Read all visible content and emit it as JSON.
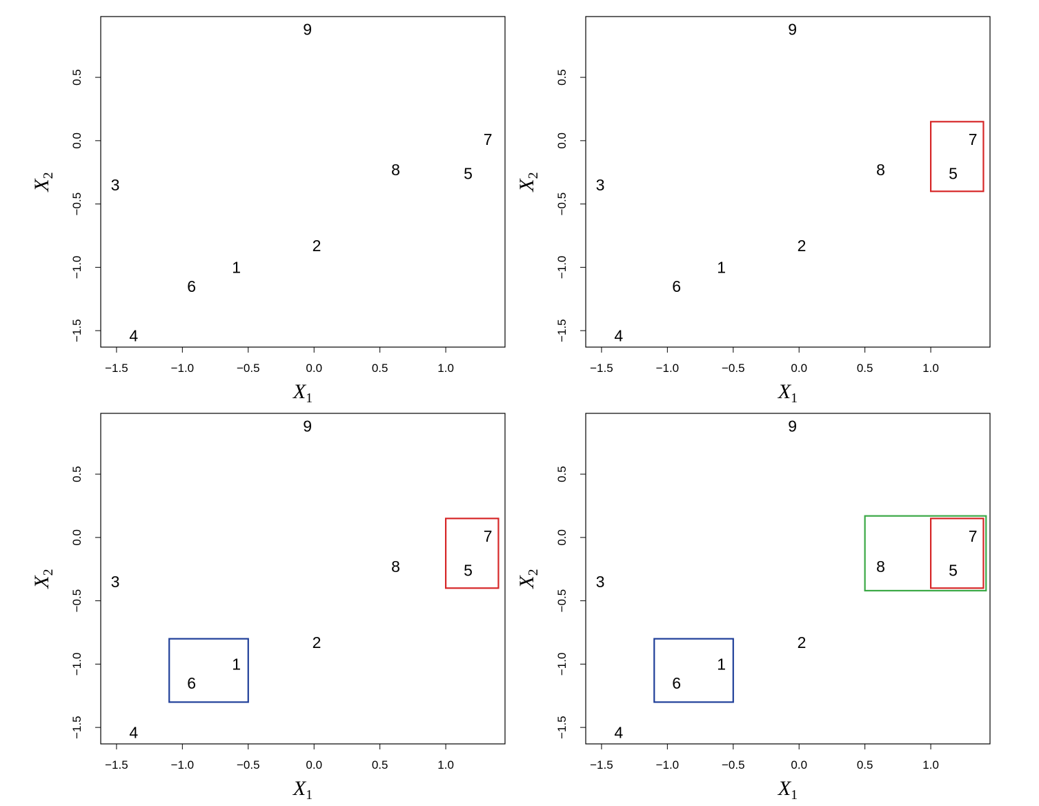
{
  "chart_data": [
    {
      "type": "scatter",
      "xlabel": "X",
      "xlabel_sub": "1",
      "ylabel": "X",
      "ylabel_sub": "2",
      "xlim": [
        -1.62,
        1.45
      ],
      "ylim": [
        -1.63,
        0.98
      ],
      "xticks": [
        {
          "v": -1.5,
          "t": "−1.5"
        },
        {
          "v": -1.0,
          "t": "−1.0"
        },
        {
          "v": -0.5,
          "t": "−0.5"
        },
        {
          "v": 0.0,
          "t": "0.0"
        },
        {
          "v": 0.5,
          "t": "0.5"
        },
        {
          "v": 1.0,
          "t": "1.0"
        }
      ],
      "yticks": [
        {
          "v": -1.5,
          "t": "−1.5"
        },
        {
          "v": -1.0,
          "t": "−1.0"
        },
        {
          "v": -0.5,
          "t": "−0.5"
        },
        {
          "v": 0.0,
          "t": "0.0"
        },
        {
          "v": 0.5,
          "t": "0.5"
        }
      ],
      "points": [
        {
          "label": "1",
          "x": -0.59,
          "y": -1.0
        },
        {
          "label": "2",
          "x": 0.02,
          "y": -0.83
        },
        {
          "label": "3",
          "x": -1.51,
          "y": -0.35
        },
        {
          "label": "4",
          "x": -1.37,
          "y": -1.54
        },
        {
          "label": "5",
          "x": 1.17,
          "y": -0.26
        },
        {
          "label": "6",
          "x": -0.93,
          "y": -1.15
        },
        {
          "label": "7",
          "x": 1.32,
          "y": 0.01
        },
        {
          "label": "8",
          "x": 0.62,
          "y": -0.23
        },
        {
          "label": "9",
          "x": -0.05,
          "y": 0.88
        }
      ],
      "rectangles": []
    },
    {
      "type": "scatter",
      "xlabel": "X",
      "xlabel_sub": "1",
      "ylabel": "X",
      "ylabel_sub": "2",
      "xlim": [
        -1.62,
        1.45
      ],
      "ylim": [
        -1.63,
        0.98
      ],
      "xticks": [
        {
          "v": -1.5,
          "t": "−1.5"
        },
        {
          "v": -1.0,
          "t": "−1.0"
        },
        {
          "v": -0.5,
          "t": "−0.5"
        },
        {
          "v": 0.0,
          "t": "0.0"
        },
        {
          "v": 0.5,
          "t": "0.5"
        },
        {
          "v": 1.0,
          "t": "1.0"
        }
      ],
      "yticks": [
        {
          "v": -1.5,
          "t": "−1.5"
        },
        {
          "v": -1.0,
          "t": "−1.0"
        },
        {
          "v": -0.5,
          "t": "−0.5"
        },
        {
          "v": 0.0,
          "t": "0.0"
        },
        {
          "v": 0.5,
          "t": "0.5"
        }
      ],
      "points": [
        {
          "label": "1",
          "x": -0.59,
          "y": -1.0
        },
        {
          "label": "2",
          "x": 0.02,
          "y": -0.83
        },
        {
          "label": "3",
          "x": -1.51,
          "y": -0.35
        },
        {
          "label": "4",
          "x": -1.37,
          "y": -1.54
        },
        {
          "label": "5",
          "x": 1.17,
          "y": -0.26
        },
        {
          "label": "6",
          "x": -0.93,
          "y": -1.15
        },
        {
          "label": "7",
          "x": 1.32,
          "y": 0.01
        },
        {
          "label": "8",
          "x": 0.62,
          "y": -0.23
        },
        {
          "label": "9",
          "x": -0.05,
          "y": 0.88
        }
      ],
      "rectangles": [
        {
          "x0": 1.0,
          "x1": 1.4,
          "y0": -0.4,
          "y1": 0.15,
          "color": "#d62728"
        }
      ]
    },
    {
      "type": "scatter",
      "xlabel": "X",
      "xlabel_sub": "1",
      "ylabel": "X",
      "ylabel_sub": "2",
      "xlim": [
        -1.62,
        1.45
      ],
      "ylim": [
        -1.63,
        0.98
      ],
      "xticks": [
        {
          "v": -1.5,
          "t": "−1.5"
        },
        {
          "v": -1.0,
          "t": "−1.0"
        },
        {
          "v": -0.5,
          "t": "−0.5"
        },
        {
          "v": 0.0,
          "t": "0.0"
        },
        {
          "v": 0.5,
          "t": "0.5"
        },
        {
          "v": 1.0,
          "t": "1.0"
        }
      ],
      "yticks": [
        {
          "v": -1.5,
          "t": "−1.5"
        },
        {
          "v": -1.0,
          "t": "−1.0"
        },
        {
          "v": -0.5,
          "t": "−0.5"
        },
        {
          "v": 0.0,
          "t": "0.0"
        },
        {
          "v": 0.5,
          "t": "0.5"
        }
      ],
      "points": [
        {
          "label": "1",
          "x": -0.59,
          "y": -1.0
        },
        {
          "label": "2",
          "x": 0.02,
          "y": -0.83
        },
        {
          "label": "3",
          "x": -1.51,
          "y": -0.35
        },
        {
          "label": "4",
          "x": -1.37,
          "y": -1.54
        },
        {
          "label": "5",
          "x": 1.17,
          "y": -0.26
        },
        {
          "label": "6",
          "x": -0.93,
          "y": -1.15
        },
        {
          "label": "7",
          "x": 1.32,
          "y": 0.01
        },
        {
          "label": "8",
          "x": 0.62,
          "y": -0.23
        },
        {
          "label": "9",
          "x": -0.05,
          "y": 0.88
        }
      ],
      "rectangles": [
        {
          "x0": 1.0,
          "x1": 1.4,
          "y0": -0.4,
          "y1": 0.15,
          "color": "#d62728"
        },
        {
          "x0": -1.1,
          "x1": -0.5,
          "y0": -1.3,
          "y1": -0.8,
          "color": "#1f3f99"
        }
      ]
    },
    {
      "type": "scatter",
      "xlabel": "X",
      "xlabel_sub": "1",
      "ylabel": "X",
      "ylabel_sub": "2",
      "xlim": [
        -1.62,
        1.45
      ],
      "ylim": [
        -1.63,
        0.98
      ],
      "xticks": [
        {
          "v": -1.5,
          "t": "−1.5"
        },
        {
          "v": -1.0,
          "t": "−1.0"
        },
        {
          "v": -0.5,
          "t": "−0.5"
        },
        {
          "v": 0.0,
          "t": "0.0"
        },
        {
          "v": 0.5,
          "t": "0.5"
        },
        {
          "v": 1.0,
          "t": "1.0"
        }
      ],
      "yticks": [
        {
          "v": -1.5,
          "t": "−1.5"
        },
        {
          "v": -1.0,
          "t": "−1.0"
        },
        {
          "v": -0.5,
          "t": "−0.5"
        },
        {
          "v": 0.0,
          "t": "0.0"
        },
        {
          "v": 0.5,
          "t": "0.5"
        }
      ],
      "points": [
        {
          "label": "1",
          "x": -0.59,
          "y": -1.0
        },
        {
          "label": "2",
          "x": 0.02,
          "y": -0.83
        },
        {
          "label": "3",
          "x": -1.51,
          "y": -0.35
        },
        {
          "label": "4",
          "x": -1.37,
          "y": -1.54
        },
        {
          "label": "5",
          "x": 1.17,
          "y": -0.26
        },
        {
          "label": "6",
          "x": -0.93,
          "y": -1.15
        },
        {
          "label": "7",
          "x": 1.32,
          "y": 0.01
        },
        {
          "label": "8",
          "x": 0.62,
          "y": -0.23
        },
        {
          "label": "9",
          "x": -0.05,
          "y": 0.88
        }
      ],
      "rectangles": [
        {
          "x0": 0.5,
          "x1": 1.42,
          "y0": -0.42,
          "y1": 0.17,
          "color": "#3aa845"
        },
        {
          "x0": 1.0,
          "x1": 1.4,
          "y0": -0.4,
          "y1": 0.15,
          "color": "#d62728"
        },
        {
          "x0": -1.1,
          "x1": -0.5,
          "y0": -1.3,
          "y1": -0.8,
          "color": "#1f3f99"
        }
      ]
    }
  ]
}
